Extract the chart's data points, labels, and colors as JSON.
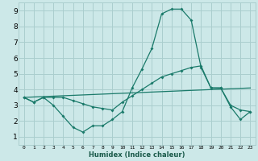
{
  "xlabel": "Humidex (Indice chaleur)",
  "bg_color": "#cce8e8",
  "grid_color": "#aacece",
  "line_color": "#1a7a6a",
  "xlim": [
    -0.5,
    23.5
  ],
  "ylim": [
    0.5,
    9.5
  ],
  "xticks": [
    0,
    1,
    2,
    3,
    4,
    5,
    6,
    7,
    8,
    9,
    10,
    11,
    12,
    13,
    14,
    15,
    16,
    17,
    18,
    19,
    20,
    21,
    22,
    23
  ],
  "yticks": [
    1,
    2,
    3,
    4,
    5,
    6,
    7,
    8,
    9
  ],
  "line1_x": [
    0,
    1,
    2,
    3,
    4,
    5,
    6,
    7,
    8,
    9,
    10,
    11,
    12,
    13,
    14,
    15,
    16,
    17,
    18,
    19,
    20,
    21,
    22,
    23
  ],
  "line1_y": [
    3.5,
    3.2,
    3.5,
    3.0,
    2.3,
    1.6,
    1.3,
    1.7,
    1.7,
    2.1,
    2.6,
    4.1,
    5.3,
    6.6,
    8.8,
    9.1,
    9.1,
    8.4,
    5.4,
    4.1,
    4.1,
    2.9,
    2.1,
    2.6
  ],
  "line2_x": [
    0,
    1,
    2,
    3,
    4,
    5,
    6,
    7,
    8,
    9,
    10,
    11,
    12,
    13,
    14,
    15,
    16,
    17,
    18,
    19,
    20,
    21,
    22,
    23
  ],
  "line2_y": [
    3.5,
    3.2,
    3.5,
    3.5,
    3.5,
    3.3,
    3.1,
    2.9,
    2.8,
    2.7,
    3.2,
    3.6,
    4.0,
    4.4,
    4.8,
    5.0,
    5.2,
    5.4,
    5.5,
    4.1,
    4.1,
    3.0,
    2.7,
    2.6
  ],
  "line3_x": [
    0,
    23
  ],
  "line3_y": [
    3.5,
    4.1
  ],
  "xlabel_fontsize": 6.0,
  "ytick_fontsize": 6.5,
  "xtick_fontsize": 4.5
}
